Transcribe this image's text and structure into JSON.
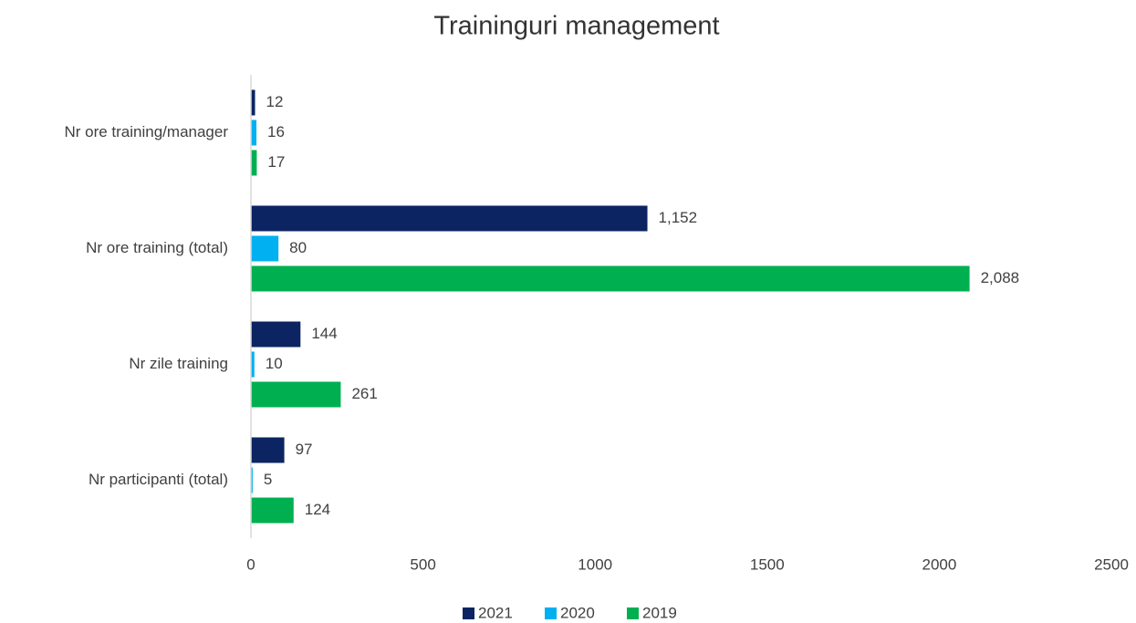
{
  "chart_data": {
    "type": "hbar",
    "title": "Traininguri management",
    "categories": [
      "Nr ore training/manager",
      "Nr ore training (total)",
      "Nr zile training",
      "Nr participanti (total)"
    ],
    "series": [
      {
        "name": "2021",
        "color": "#0c2461",
        "values": [
          12,
          1152,
          144,
          97
        ],
        "value_labels": [
          "12",
          "1,152",
          "144",
          "97"
        ]
      },
      {
        "name": "2020",
        "color": "#00b0f0",
        "values": [
          16,
          80,
          10,
          5
        ]
      },
      {
        "name": "2019",
        "color": "#00b050",
        "values": [
          17,
          2088,
          261,
          124
        ],
        "value_labels": [
          "17",
          "2,088",
          "261",
          "124"
        ]
      }
    ],
    "xlim": [
      0,
      2500
    ],
    "xticks": [
      0,
      500,
      1000,
      1500,
      2000,
      2500
    ],
    "grid": false,
    "legend": "bottom"
  }
}
